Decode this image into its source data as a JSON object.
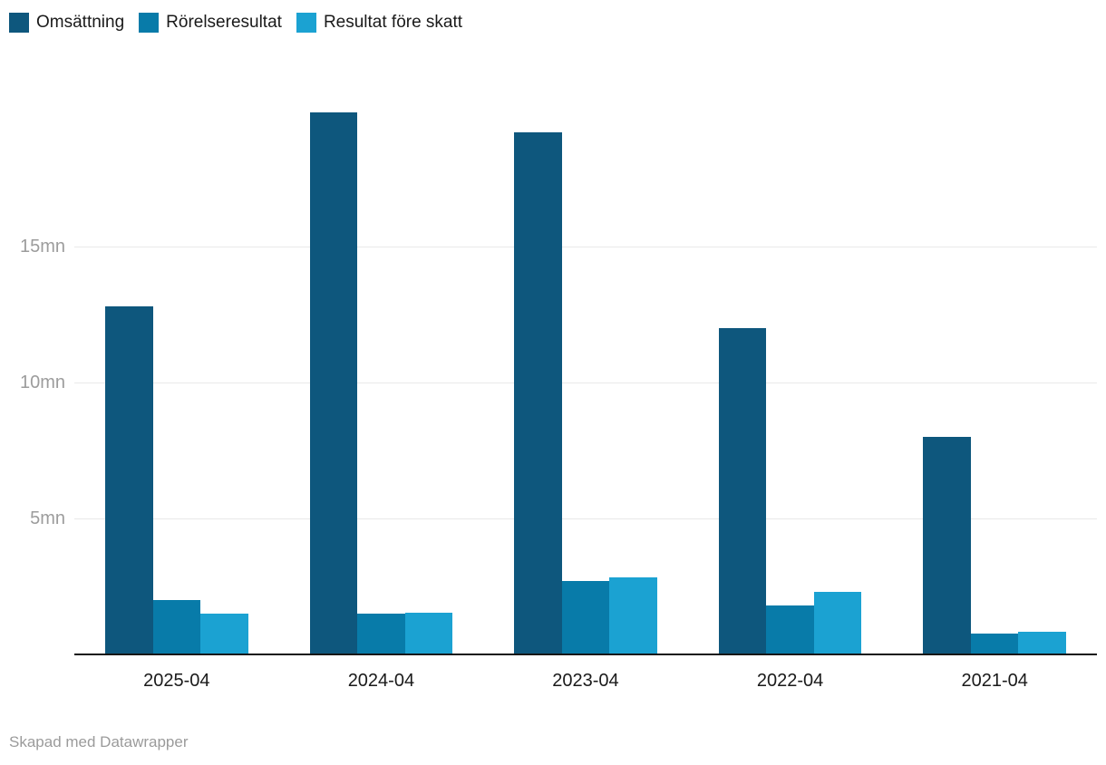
{
  "footer": {
    "credit": "Skapad med Datawrapper"
  },
  "colors": {
    "grid": "#e9e9e9",
    "axis_line": "#161616",
    "tick_label": "#9c9c9c",
    "category_label": "#1a1a1a",
    "footer_text": "#9b9b9b"
  },
  "chart_data": {
    "type": "bar",
    "categories": [
      "2025-04",
      "2024-04",
      "2023-04",
      "2022-04",
      "2021-04"
    ],
    "series": [
      {
        "name": "Omsättning",
        "color": "#0e577d",
        "values": [
          12.8,
          19.95,
          19.2,
          12.0,
          8.0
        ]
      },
      {
        "name": "Rörelseresultat",
        "color": "#087ba9",
        "values": [
          2.0,
          1.5,
          2.7,
          1.8,
          0.78
        ]
      },
      {
        "name": "Resultat före skatt",
        "color": "#1ba2d2",
        "values": [
          1.5,
          1.55,
          2.85,
          2.3,
          0.85
        ]
      }
    ],
    "title": "",
    "xlabel": "",
    "ylabel": "",
    "unit": "mn",
    "y_ticks": [
      {
        "value": 5,
        "label": "5mn"
      },
      {
        "value": 10,
        "label": "10mn"
      },
      {
        "value": 15,
        "label": "15mn"
      }
    ],
    "ylim": [
      0,
      21
    ],
    "grid": "horizontal",
    "legend_position": "top-left",
    "credit": "Skapad med Datawrapper"
  }
}
